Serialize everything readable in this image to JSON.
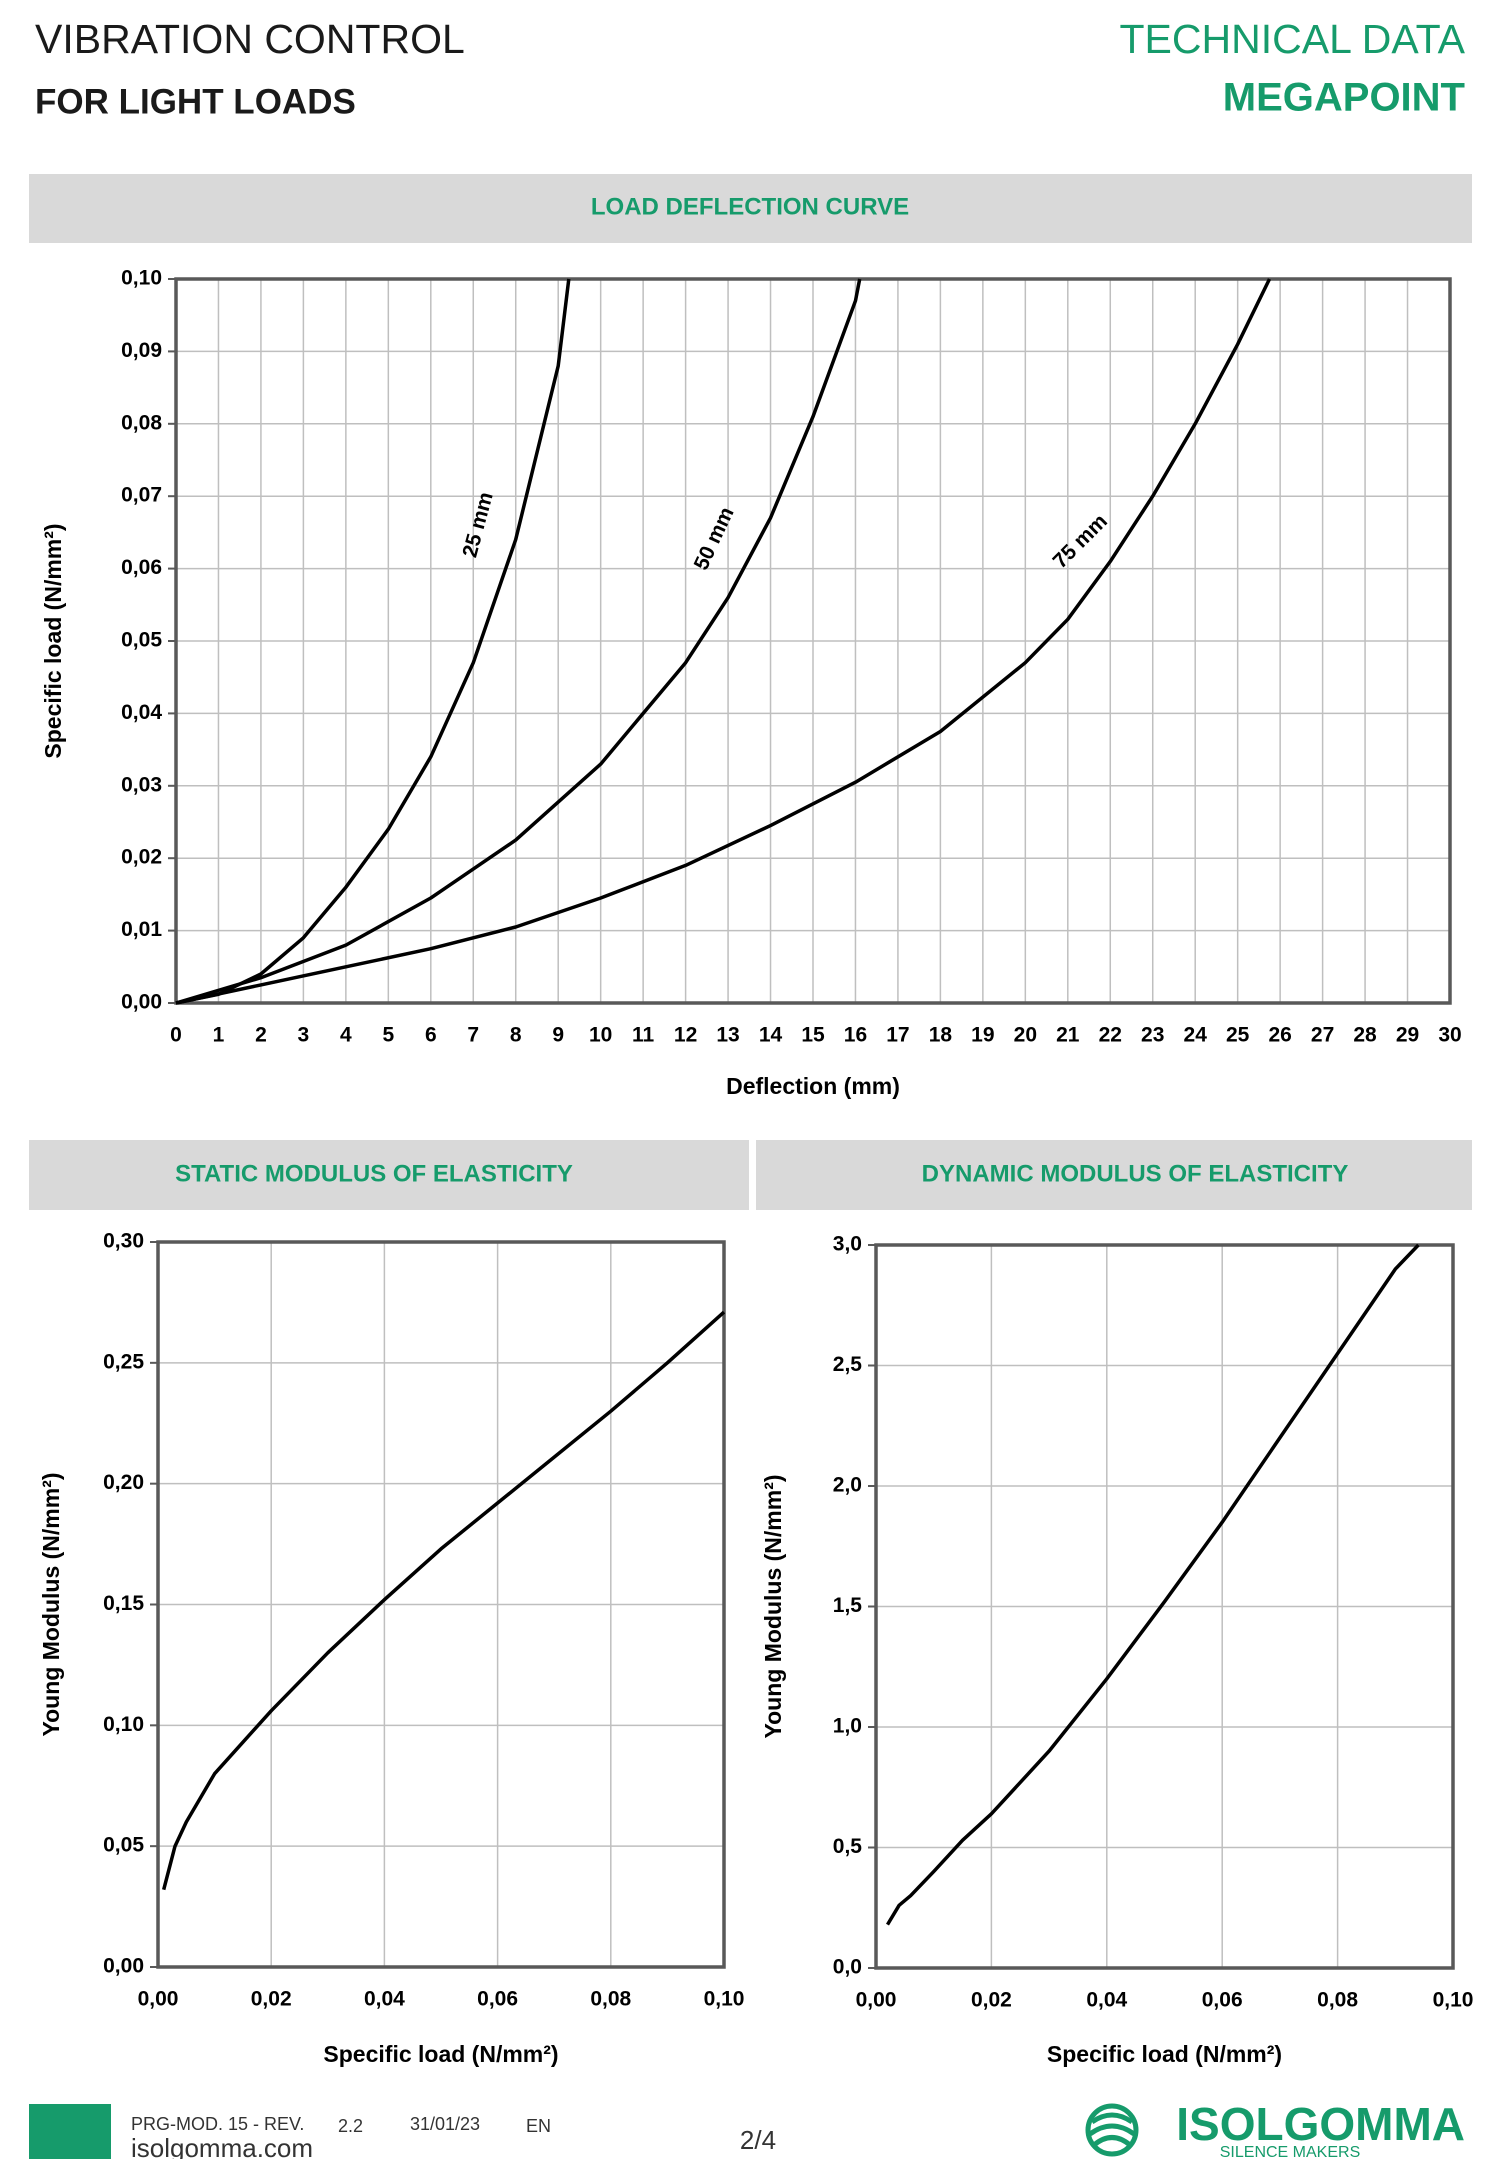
{
  "header": {
    "title": "VIBRATION CONTROL",
    "subtitle": "FOR LIGHT LOADS",
    "section": "TECHNICAL DATA",
    "product": "MEGAPOINT"
  },
  "chart_data": [
    {
      "type": "line",
      "title": "LOAD DEFLECTION CURVE",
      "x_label": "Deflection (mm)",
      "y_label": "Specific load (N/mm²)",
      "xlim": [
        0,
        30
      ],
      "ylim": [
        0,
        0.1
      ],
      "xticks": [
        0,
        1,
        2,
        3,
        4,
        5,
        6,
        7,
        8,
        9,
        10,
        11,
        12,
        13,
        14,
        15,
        16,
        17,
        18,
        19,
        20,
        21,
        22,
        23,
        24,
        25,
        26,
        27,
        28,
        29,
        30
      ],
      "yticks": [
        {
          "value": 0,
          "label": "0,00"
        },
        {
          "value": 0.01,
          "label": "0,01"
        },
        {
          "value": 0.02,
          "label": "0,02"
        },
        {
          "value": 0.03,
          "label": "0,03"
        },
        {
          "value": 0.04,
          "label": "0,04"
        },
        {
          "value": 0.05,
          "label": "0,05"
        },
        {
          "value": 0.06,
          "label": "0,06"
        },
        {
          "value": 0.07,
          "label": "0,07"
        },
        {
          "value": 0.08,
          "label": "0,08"
        },
        {
          "value": 0.09,
          "label": "0,09"
        },
        {
          "value": 0.1,
          "label": "0,10"
        }
      ],
      "grid": true,
      "series": [
        {
          "name": "25 mm",
          "color": "#000000",
          "x": [
            0,
            1,
            2,
            3,
            4,
            5,
            6,
            7,
            8,
            9,
            9.25
          ],
          "values": [
            0,
            0.0012,
            0.004,
            0.009,
            0.016,
            0.024,
            0.034,
            0.047,
            0.064,
            0.088,
            0.1
          ]
        },
        {
          "name": "50 mm",
          "color": "#000000",
          "x": [
            0,
            2,
            4,
            6,
            8,
            10,
            12,
            13,
            14,
            15,
            16,
            16.1
          ],
          "values": [
            0,
            0.0035,
            0.008,
            0.0145,
            0.0225,
            0.033,
            0.047,
            0.056,
            0.067,
            0.081,
            0.097,
            0.1
          ]
        },
        {
          "name": "75 mm",
          "color": "#000000",
          "x": [
            0,
            2,
            4,
            6,
            8,
            10,
            12,
            14,
            16,
            18,
            20,
            21,
            22,
            23,
            24,
            25,
            25.75
          ],
          "values": [
            0,
            0.0025,
            0.005,
            0.0075,
            0.0105,
            0.0145,
            0.019,
            0.0245,
            0.0305,
            0.0375,
            0.047,
            0.053,
            0.061,
            0.07,
            0.08,
            0.091,
            0.1
          ]
        }
      ]
    },
    {
      "type": "line",
      "title": "STATIC MODULUS OF ELASTICITY",
      "x_label": "Specific load (N/mm²)",
      "y_label": "Young Modulus (N/mm²)",
      "xlim": [
        0,
        0.1
      ],
      "ylim": [
        0,
        0.3
      ],
      "xticks": [
        {
          "value": 0,
          "label": "0,00"
        },
        {
          "value": 0.02,
          "label": "0,02"
        },
        {
          "value": 0.04,
          "label": "0,04"
        },
        {
          "value": 0.06,
          "label": "0,06"
        },
        {
          "value": 0.08,
          "label": "0,08"
        },
        {
          "value": 0.1,
          "label": "0,10"
        }
      ],
      "yticks": [
        {
          "value": 0,
          "label": "0,00"
        },
        {
          "value": 0.05,
          "label": "0,05"
        },
        {
          "value": 0.1,
          "label": "0,10"
        },
        {
          "value": 0.15,
          "label": "0,15"
        },
        {
          "value": 0.2,
          "label": "0,20"
        },
        {
          "value": 0.25,
          "label": "0,25"
        },
        {
          "value": 0.3,
          "label": "0,30"
        }
      ],
      "grid": true,
      "series": [
        {
          "color": "#000000",
          "x": [
            0.001,
            0.003,
            0.005,
            0.01,
            0.02,
            0.03,
            0.04,
            0.05,
            0.06,
            0.07,
            0.08,
            0.09,
            0.1
          ],
          "values": [
            0.032,
            0.05,
            0.06,
            0.08,
            0.106,
            0.13,
            0.152,
            0.173,
            0.192,
            0.211,
            0.23,
            0.25,
            0.271
          ]
        }
      ]
    },
    {
      "type": "line",
      "title": "DYNAMIC MODULUS OF ELASTICITY",
      "x_label": "Specific load (N/mm²)",
      "y_label": "Young Modulus (N/mm²)",
      "xlim": [
        0,
        0.1
      ],
      "ylim": [
        0,
        3
      ],
      "xticks": [
        {
          "value": 0,
          "label": "0,00"
        },
        {
          "value": 0.02,
          "label": "0,02"
        },
        {
          "value": 0.04,
          "label": "0,04"
        },
        {
          "value": 0.06,
          "label": "0,06"
        },
        {
          "value": 0.08,
          "label": "0,08"
        },
        {
          "value": 0.1,
          "label": "0,10"
        }
      ],
      "yticks": [
        {
          "value": 0,
          "label": "0,0"
        },
        {
          "value": 0.5,
          "label": "0,5"
        },
        {
          "value": 1,
          "label": "1,0"
        },
        {
          "value": 1.5,
          "label": "1,5"
        },
        {
          "value": 2,
          "label": "2,0"
        },
        {
          "value": 2.5,
          "label": "2,5"
        },
        {
          "value": 3,
          "label": "3,0"
        }
      ],
      "grid": true,
      "series": [
        {
          "color": "#000000",
          "x": [
            0.002,
            0.004,
            0.006,
            0.01,
            0.015,
            0.02,
            0.03,
            0.04,
            0.05,
            0.06,
            0.07,
            0.08,
            0.09,
            0.094
          ],
          "values": [
            0.18,
            0.26,
            0.3,
            0.4,
            0.53,
            0.64,
            0.9,
            1.2,
            1.52,
            1.85,
            2.2,
            2.55,
            2.9,
            3
          ]
        }
      ]
    }
  ],
  "footer": {
    "form": "PRG-MOD. 15 - REV.",
    "revision": "2.2",
    "date": "31/01/23",
    "language": "EN",
    "website": "isolgomma.com",
    "page": "2/4",
    "brand": "ISOLGOMMA",
    "tagline": "SILENCE MAKERS"
  }
}
